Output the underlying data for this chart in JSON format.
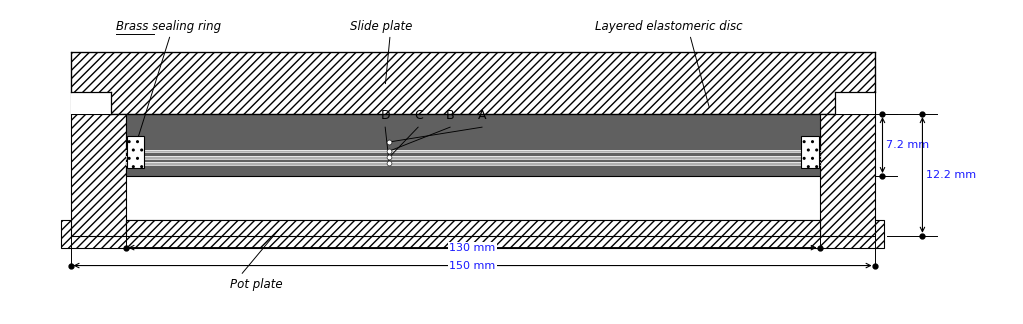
{
  "fig_width": 10.23,
  "fig_height": 3.24,
  "dpi": 100,
  "background": "#ffffff",
  "disc_color": "#606060",
  "steel_shim_color": "#b0b0b0",
  "hatch_pattern": "////",
  "text_color_blue": "#1a1aff",
  "text_color_black": "#000000",
  "label_brass": "Brass sealing ring",
  "label_slide": "Slide plate",
  "label_layered": "Layered elastomeric disc",
  "label_pot": "Pot plate",
  "dim_130": "130 mm",
  "dim_150": "150 mm",
  "dim_7p2": "7.2 mm",
  "dim_12p2": "12.2 mm",
  "abcd_labels": [
    "D",
    "C",
    "B",
    "A"
  ],
  "xlim": [
    0,
    10.23
  ],
  "ylim": [
    0,
    3.24
  ]
}
